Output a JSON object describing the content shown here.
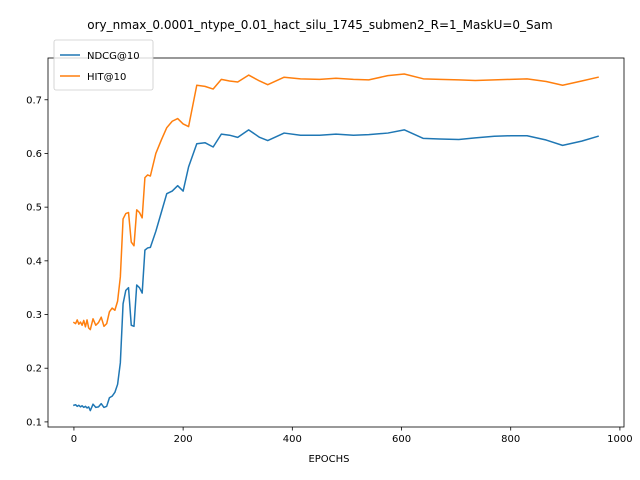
{
  "chart_data": {
    "type": "line",
    "title": "ory_nmax_0.0001_ntype_0.01_hact_silu_1745_submen2_R=1_MaskU=0_Sam",
    "xlabel": "EPOCHS",
    "ylabel": "",
    "xlim": [
      -47.5,
      1007.5
    ],
    "ylim": [
      0.0905,
      0.7778
    ],
    "xticks": [
      0,
      200,
      400,
      600,
      800,
      1000
    ],
    "yticks": [
      0.1,
      0.2,
      0.3,
      0.4,
      0.5,
      0.6,
      0.7
    ],
    "grid": false,
    "legend_position": "top-left",
    "series": [
      {
        "name": "NDCG@10",
        "color": "#1f77b4",
        "x": [
          0,
          3,
          6,
          9,
          12,
          15,
          18,
          21,
          24,
          27,
          30,
          35,
          40,
          45,
          50,
          55,
          60,
          65,
          70,
          75,
          80,
          85,
          90,
          95,
          100,
          105,
          110,
          115,
          120,
          125,
          130,
          135,
          140,
          150,
          160,
          170,
          180,
          190,
          200,
          210,
          225,
          240,
          255,
          270,
          285,
          300,
          320,
          340,
          355,
          385,
          415,
          450,
          480,
          512,
          540,
          575,
          605,
          640,
          670,
          705,
          735,
          770,
          800,
          830,
          865,
          895,
          930,
          960
        ],
        "y": [
          0.131,
          0.132,
          0.129,
          0.131,
          0.128,
          0.13,
          0.127,
          0.129,
          0.126,
          0.128,
          0.121,
          0.133,
          0.127,
          0.128,
          0.134,
          0.127,
          0.129,
          0.145,
          0.148,
          0.155,
          0.17,
          0.21,
          0.32,
          0.345,
          0.35,
          0.28,
          0.278,
          0.355,
          0.35,
          0.34,
          0.42,
          0.424,
          0.425,
          0.455,
          0.49,
          0.525,
          0.53,
          0.54,
          0.53,
          0.575,
          0.618,
          0.62,
          0.612,
          0.636,
          0.634,
          0.63,
          0.644,
          0.63,
          0.624,
          0.638,
          0.634,
          0.634,
          0.636,
          0.634,
          0.635,
          0.638,
          0.644,
          0.628,
          0.627,
          0.626,
          0.629,
          0.632,
          0.633,
          0.633,
          0.625,
          0.615,
          0.623,
          0.632
        ]
      },
      {
        "name": "HIT@10",
        "color": "#ff7f0e",
        "x": [
          0,
          3,
          6,
          9,
          12,
          15,
          18,
          21,
          24,
          27,
          30,
          35,
          40,
          45,
          50,
          55,
          60,
          65,
          70,
          75,
          80,
          85,
          90,
          95,
          100,
          105,
          110,
          115,
          120,
          125,
          130,
          135,
          140,
          150,
          160,
          170,
          180,
          190,
          200,
          210,
          225,
          240,
          255,
          270,
          285,
          300,
          320,
          340,
          355,
          385,
          415,
          450,
          480,
          512,
          540,
          575,
          605,
          640,
          670,
          705,
          735,
          770,
          800,
          830,
          865,
          895,
          930,
          960
        ],
        "y": [
          0.285,
          0.283,
          0.29,
          0.282,
          0.286,
          0.28,
          0.289,
          0.277,
          0.29,
          0.275,
          0.272,
          0.292,
          0.28,
          0.285,
          0.295,
          0.278,
          0.283,
          0.305,
          0.312,
          0.308,
          0.325,
          0.37,
          0.478,
          0.488,
          0.49,
          0.435,
          0.428,
          0.495,
          0.49,
          0.48,
          0.555,
          0.56,
          0.558,
          0.6,
          0.625,
          0.648,
          0.66,
          0.665,
          0.655,
          0.65,
          0.727,
          0.725,
          0.72,
          0.738,
          0.735,
          0.733,
          0.746,
          0.735,
          0.728,
          0.742,
          0.739,
          0.738,
          0.74,
          0.738,
          0.737,
          0.745,
          0.748,
          0.739,
          0.738,
          0.737,
          0.736,
          0.737,
          0.738,
          0.739,
          0.734,
          0.727,
          0.735,
          0.742
        ]
      }
    ]
  }
}
